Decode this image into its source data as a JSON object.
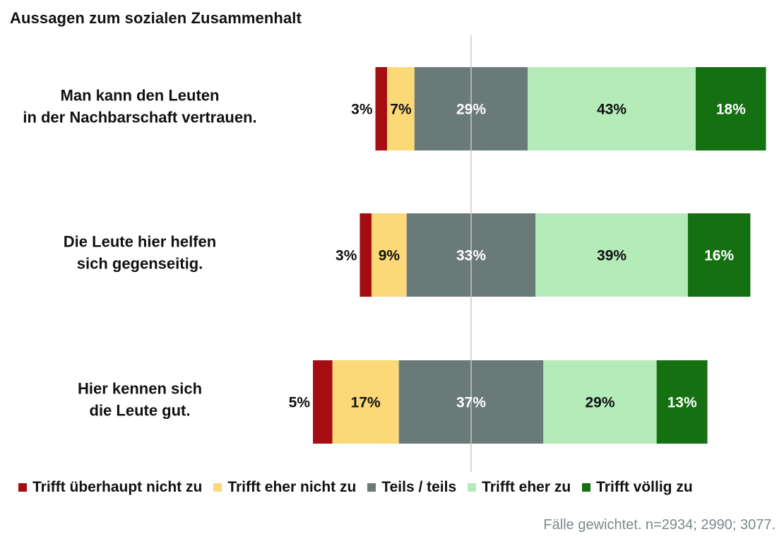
{
  "title": "Aussagen zum sozialen Zusammenhalt",
  "chart_data": {
    "type": "bar",
    "orientation": "horizontal-diverging-stacked",
    "categories": [
      "Man kann den Leuten in der Nachbarschaft vertrauen.",
      "Die Leute hier helfen sich gegenseitig.",
      "Hier kennen sich die Leute gut."
    ],
    "category_lines": [
      [
        "Man kann den Leuten",
        "in der Nachbarschaft vertrauen."
      ],
      [
        "Die Leute hier helfen",
        "sich gegenseitig."
      ],
      [
        "Hier kennen sich",
        "die Leute gut."
      ]
    ],
    "series": [
      {
        "name": "Trifft überhaupt nicht zu",
        "color": "#a50d12",
        "values": [
          3,
          3,
          5
        ]
      },
      {
        "name": "Trifft eher nicht zu",
        "color": "#fbd977",
        "values": [
          7,
          9,
          17
        ]
      },
      {
        "name": "Teils / teils",
        "color": "#6a7a78",
        "values": [
          29,
          33,
          37
        ]
      },
      {
        "name": "Trifft eher zu",
        "color": "#b5eab9",
        "values": [
          43,
          39,
          29
        ]
      },
      {
        "name": "Trifft völlig zu",
        "color": "#157011",
        "values": [
          18,
          16,
          13
        ]
      }
    ],
    "value_labels": [
      [
        "3%",
        "7%",
        "29%",
        "43%",
        "18%"
      ],
      [
        "3%",
        "9%",
        "33%",
        "39%",
        "16%"
      ],
      [
        "5%",
        "17%",
        "37%",
        "29%",
        "13%"
      ]
    ],
    "center": "midpoint of Teils / teils",
    "legend_position": "bottom",
    "grid": false
  },
  "note": "Fälle gewichtet. n=2934; 2990; 3077."
}
